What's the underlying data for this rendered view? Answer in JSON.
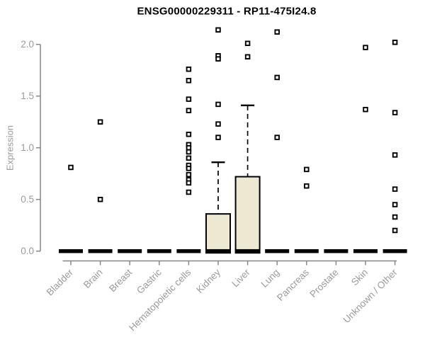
{
  "chart_data": {
    "type": "boxplot",
    "title": "ENSG00000229311 - RP11-475I24.8",
    "ylabel": "Expression",
    "xlabel": "",
    "yticks": [
      0.0,
      0.5,
      1.0,
      1.5,
      2.0
    ],
    "ylim": [
      -0.05,
      2.16
    ],
    "grid": false,
    "legend": null,
    "categories": [
      "Bladder",
      "Brain",
      "Breast",
      "Gastric",
      "Hematopoietic cells",
      "Kidney",
      "Liver",
      "Lung",
      "Pancreas",
      "Prostate",
      "Skin",
      "Unknown / Other"
    ],
    "series": [
      {
        "category": "Bladder",
        "q1": 0,
        "median": 0,
        "q3": 0,
        "whisker_low": 0,
        "whisker_high": 0,
        "outliers": [
          0.81
        ]
      },
      {
        "category": "Brain",
        "q1": 0,
        "median": 0,
        "q3": 0,
        "whisker_low": 0,
        "whisker_high": 0,
        "outliers": [
          1.25,
          0.5
        ]
      },
      {
        "category": "Breast",
        "q1": 0,
        "median": 0,
        "q3": 0,
        "whisker_low": 0,
        "whisker_high": 0,
        "outliers": []
      },
      {
        "category": "Gastric",
        "q1": 0,
        "median": 0,
        "q3": 0,
        "whisker_low": 0,
        "whisker_high": 0,
        "outliers": []
      },
      {
        "category": "Hematopoietic cells",
        "q1": 0,
        "median": 0,
        "q3": 0,
        "whisker_low": 0,
        "whisker_high": 0,
        "outliers": [
          1.76,
          1.65,
          1.47,
          1.36,
          1.13,
          1.03,
          1.0,
          0.96,
          0.9,
          0.83,
          0.8,
          0.74,
          0.69,
          0.66,
          0.57
        ]
      },
      {
        "category": "Kidney",
        "q1": 0,
        "median": 0,
        "q3": 0.36,
        "whisker_low": 0,
        "whisker_high": 0.86,
        "outliers": [
          2.14,
          1.89,
          1.86,
          1.42,
          1.23,
          1.1
        ]
      },
      {
        "category": "Liver",
        "q1": 0,
        "median": 0,
        "q3": 0.72,
        "whisker_low": 0,
        "whisker_high": 1.41,
        "outliers": [
          2.01,
          1.88
        ]
      },
      {
        "category": "Lung",
        "q1": 0,
        "median": 0,
        "q3": 0,
        "whisker_low": 0,
        "whisker_high": 0,
        "outliers": [
          2.12,
          1.68,
          1.1
        ]
      },
      {
        "category": "Pancreas",
        "q1": 0,
        "median": 0,
        "q3": 0,
        "whisker_low": 0,
        "whisker_high": 0,
        "outliers": [
          0.79,
          0.63
        ]
      },
      {
        "category": "Prostate",
        "q1": 0,
        "median": 0,
        "q3": 0,
        "whisker_low": 0,
        "whisker_high": 0,
        "outliers": []
      },
      {
        "category": "Skin",
        "q1": 0,
        "median": 0,
        "q3": 0,
        "whisker_low": 0,
        "whisker_high": 0,
        "outliers": [
          1.97,
          1.37
        ]
      },
      {
        "category": "Unknown / Other",
        "q1": 0,
        "median": 0,
        "q3": 0,
        "whisker_low": 0,
        "whisker_high": 0,
        "outliers": [
          2.02,
          1.34,
          0.93,
          0.6,
          0.45,
          0.33,
          0.2
        ]
      }
    ],
    "colors": {
      "box_fill": "#ede8d1",
      "box_border": "#000000",
      "median": "#000000",
      "whisker": "#000000",
      "outlier_stroke": "#000000",
      "outlier_fill": "#ffffff",
      "axis": "#878787",
      "text": "#9b9b9b",
      "title": "#000000"
    }
  }
}
